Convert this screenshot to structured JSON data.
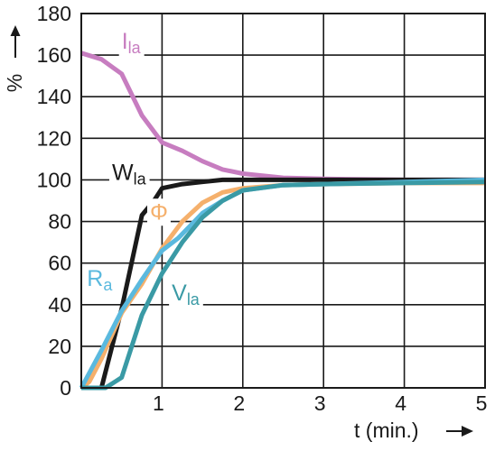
{
  "chart_data": {
    "type": "line",
    "xlabel": "t (min.)",
    "ylabel": "%",
    "xlim": [
      0,
      5
    ],
    "ylim": [
      0,
      180
    ],
    "x_ticks": [
      0,
      1,
      2,
      3,
      4,
      5
    ],
    "x_tick_labels": [
      "",
      "1",
      "2",
      "3",
      "4",
      "5"
    ],
    "y_ticks": [
      0,
      20,
      40,
      60,
      80,
      100,
      120,
      140,
      160,
      180
    ],
    "y_tick_labels": [
      "0",
      "20",
      "40",
      "60",
      "80",
      "100",
      "120",
      "140",
      "160",
      "180"
    ],
    "grid": true,
    "series": [
      {
        "label_main": "I",
        "label_sub": "la",
        "color": "#c77dc0",
        "x": [
          0,
          0.25,
          0.5,
          0.75,
          1,
          1.25,
          1.5,
          1.75,
          2,
          2.5,
          3,
          4,
          5
        ],
        "y": [
          161,
          158,
          151,
          131,
          118,
          114,
          109,
          105,
          103,
          101,
          100.5,
          100,
          100
        ]
      },
      {
        "label_main": "W",
        "label_sub": "la",
        "color": "#1a1a1a",
        "x": [
          0,
          0.25,
          0.5,
          0.75,
          0.9,
          1,
          1.25,
          1.5,
          1.75,
          2,
          3,
          4,
          5
        ],
        "y": [
          0,
          0,
          38,
          83,
          90,
          96,
          98,
          99,
          100,
          100,
          100,
          100,
          100
        ]
      },
      {
        "label_main": "Φ",
        "label_sub": "",
        "color": "#f5b06c",
        "x": [
          0,
          0.1,
          0.25,
          0.5,
          0.75,
          1,
          1.25,
          1.5,
          1.75,
          2,
          2.5,
          3,
          4,
          5
        ],
        "y": [
          0,
          3,
          14,
          36,
          50,
          67,
          80,
          89,
          94,
          96,
          97.5,
          98,
          98.5,
          98.5
        ]
      },
      {
        "label_main": "R",
        "label_sub": "a",
        "color": "#5ab9de",
        "x": [
          0,
          0.25,
          0.5,
          0.75,
          1,
          1.2,
          1.35,
          1.5,
          1.75,
          2,
          2.5,
          3,
          4,
          5
        ],
        "y": [
          0,
          18,
          37,
          52,
          66,
          72,
          78,
          84,
          90,
          95,
          97.5,
          98,
          99,
          100
        ]
      },
      {
        "label_main": "V",
        "label_sub": "la",
        "color": "#3a9aa5",
        "x": [
          0,
          0.3,
          0.5,
          0.75,
          1,
          1.25,
          1.5,
          1.75,
          2,
          2.5,
          3,
          4,
          5
        ],
        "y": [
          0,
          0,
          5,
          35,
          55,
          70,
          82,
          90,
          95,
          97.5,
          98,
          98.5,
          99
        ]
      }
    ],
    "annotations": [
      {
        "series": 0,
        "x": 0.5,
        "y": 163
      },
      {
        "series": 1,
        "x": 0.38,
        "y": 100
      },
      {
        "series": 2,
        "x": 0.85,
        "y": 81
      },
      {
        "series": 3,
        "x": 0.07,
        "y": 49
      },
      {
        "series": 4,
        "x": 1.12,
        "y": 42
      }
    ]
  }
}
